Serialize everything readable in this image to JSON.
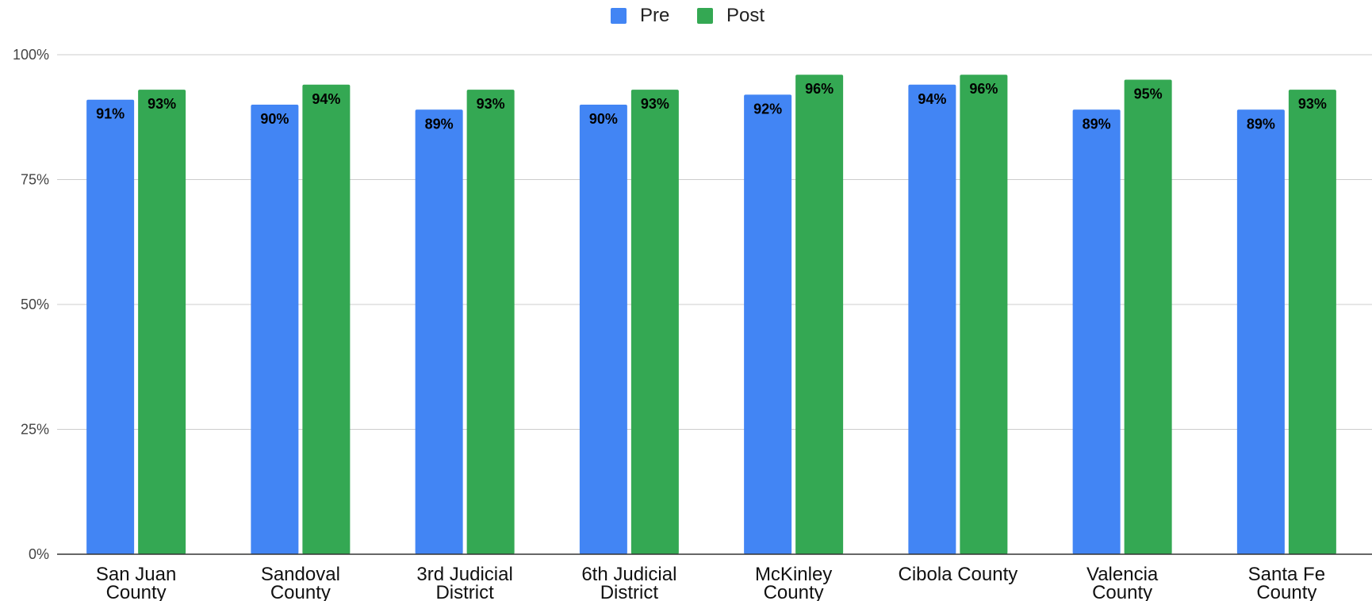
{
  "chart_data": {
    "type": "bar",
    "categories": [
      [
        "San Juan",
        "County"
      ],
      [
        "Sandoval",
        "County"
      ],
      [
        "3rd Judicial",
        "District"
      ],
      [
        "6th Judicial",
        "District"
      ],
      [
        "McKinley",
        "County"
      ],
      [
        "Cibola County"
      ],
      [
        "Valencia",
        "County"
      ],
      [
        "Santa Fe",
        "County"
      ]
    ],
    "series": [
      {
        "name": "Pre",
        "color": "#4285f4",
        "values": [
          91,
          90,
          89,
          90,
          92,
          94,
          89,
          89
        ],
        "labels": [
          "91%",
          "90%",
          "89%",
          "90%",
          "92%",
          "94%",
          "89%",
          "89%"
        ]
      },
      {
        "name": "Post",
        "color": "#34a853",
        "values": [
          93,
          94,
          93,
          93,
          96,
          96,
          95,
          93
        ],
        "labels": [
          "93%",
          "94%",
          "93%",
          "93%",
          "96%",
          "96%",
          "95%",
          "93%"
        ]
      }
    ],
    "ylim": [
      0,
      100
    ],
    "yticks": [
      0,
      25,
      50,
      75,
      100
    ],
    "ytick_labels": [
      "0%",
      "25%",
      "50%",
      "75%",
      "100%"
    ],
    "grid": true,
    "legend_position": "top-center"
  }
}
